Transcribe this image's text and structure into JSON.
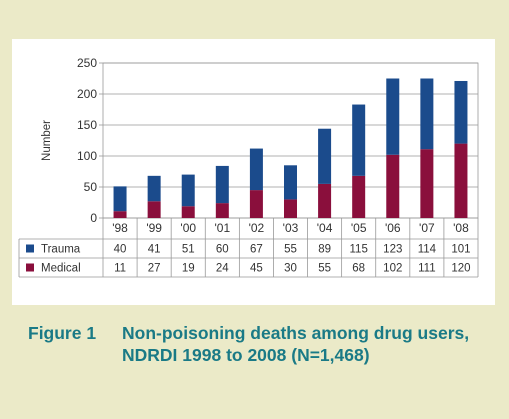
{
  "colors": {
    "trauma": "#1b4b8c",
    "medical": "#8a0f3c",
    "background": "#ebeac8",
    "caption": "#1a7a86"
  },
  "caption": {
    "label": "Figure 1",
    "text": "Non-poisoning deaths among drug users, NDRDI 1998 to 2008 (N=1,468)"
  },
  "chart_data": {
    "type": "bar",
    "stacked": true,
    "categories": [
      "'98",
      "'99",
      "'00",
      "'01",
      "'02",
      "'03",
      "'04",
      "'05",
      "'06",
      "'07",
      "'08"
    ],
    "series": [
      {
        "name": "Trauma",
        "values": [
          40,
          41,
          51,
          60,
          67,
          55,
          89,
          115,
          123,
          114,
          101
        ]
      },
      {
        "name": "Medical",
        "values": [
          11,
          27,
          19,
          24,
          45,
          30,
          55,
          68,
          102,
          111,
          120
        ]
      }
    ],
    "ylabel": "Number",
    "ylim": [
      0,
      250
    ],
    "yticks": [
      0,
      50,
      100,
      150,
      200,
      250
    ],
    "legend": "data-table-below",
    "grid": "horizontal"
  }
}
